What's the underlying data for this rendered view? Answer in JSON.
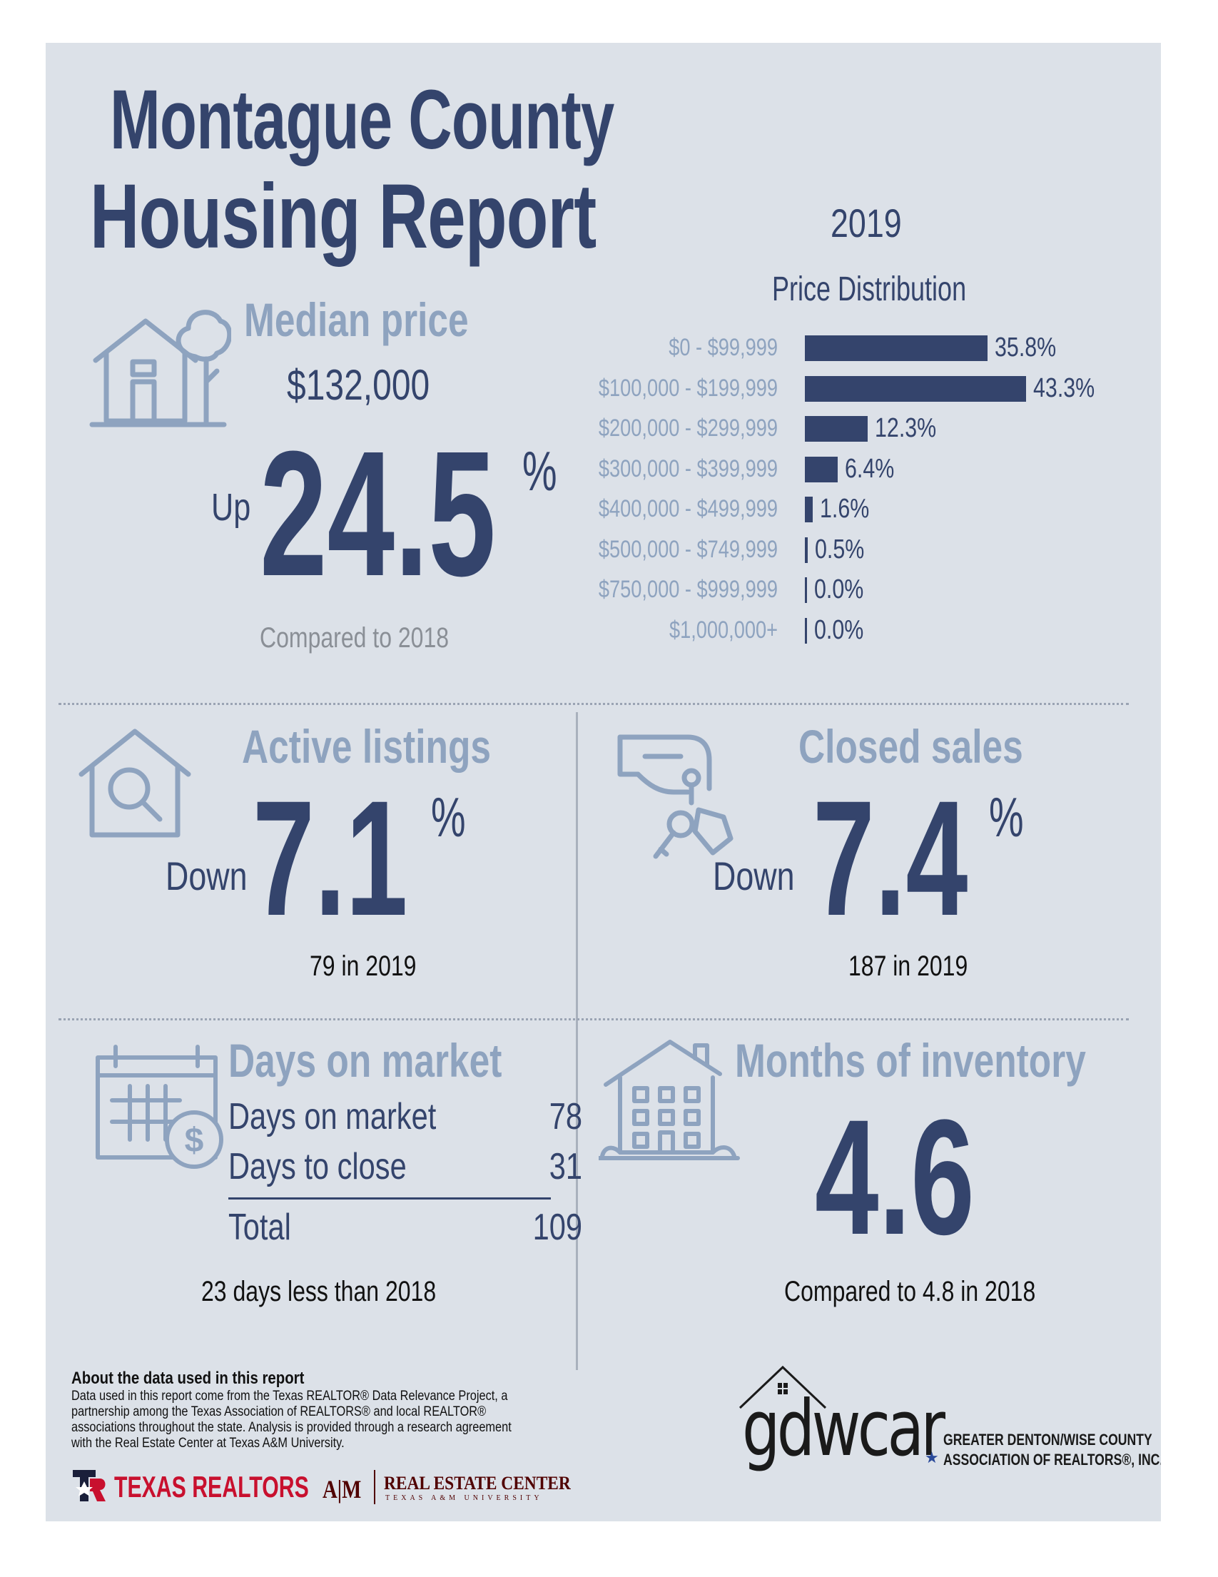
{
  "title": {
    "line1": "Montague County",
    "line2": "Housing Report"
  },
  "year": "2019",
  "price_distribution": {
    "title": "Price Distribution",
    "rows": [
      {
        "label": "$0 - $99,999",
        "value": 35.8,
        "text": "35.8%"
      },
      {
        "label": "$100,000 - $199,999",
        "value": 43.3,
        "text": "43.3%"
      },
      {
        "label": "$200,000 - $299,999",
        "value": 12.3,
        "text": "12.3%"
      },
      {
        "label": "$300,000 - $399,999",
        "value": 6.4,
        "text": "6.4%"
      },
      {
        "label": "$400,000 - $499,999",
        "value": 1.6,
        "text": "1.6%"
      },
      {
        "label": "$500,000 - $749,999",
        "value": 0.5,
        "text": "0.5%"
      },
      {
        "label": "$750,000 - $999,999",
        "value": 0.0,
        "text": "0.0%"
      },
      {
        "label": "$1,000,000+",
        "value": 0.0,
        "text": "0.0%"
      }
    ]
  },
  "median_price": {
    "heading": "Median price",
    "value": "$132,000",
    "direction": "Up",
    "change": "24.5",
    "percent": "%",
    "comparison": "Compared to 2018",
    "icon": "house-with-tree-icon"
  },
  "active_listings": {
    "heading": "Active listings",
    "direction": "Down",
    "change": "7.1",
    "percent": "%",
    "footnote": "79 in 2019",
    "icon": "house-magnifier-icon"
  },
  "closed_sales": {
    "heading": "Closed sales",
    "direction": "Down",
    "change": "7.4",
    "percent": "%",
    "footnote": "187 in 2019",
    "icon": "hand-keys-icon"
  },
  "days_on_market": {
    "heading": "Days on market",
    "rows": [
      {
        "label": "Days on market",
        "value": "78"
      },
      {
        "label": "Days to close",
        "value": "31"
      }
    ],
    "total_label": "Total",
    "total_value": "109",
    "footnote": "23 days less than 2018",
    "icon": "calendar-dollar-icon"
  },
  "months_inventory": {
    "heading": "Months of inventory",
    "value": "4.6",
    "footnote": "Compared to 4.8 in 2018",
    "icon": "apartment-house-icon"
  },
  "about": {
    "title": "About the data used in this report",
    "text": "Data used in this report come from the Texas REALTOR® Data Relevance Project, a partnership among the Texas Association of REALTORS® and local REALTOR® associations throughout the state. Analysis is provided through a research agreement with the Real Estate Center at Texas A&M University."
  },
  "logos": {
    "texas_realtors": "TEXAS REALTORS",
    "rec_main": "REAL ESTATE CENTER",
    "rec_sub": "TEXAS A&M UNIVERSITY",
    "tam": "A|M",
    "gdwcar": "gdwcar",
    "gdwcar_line1": "GREATER DENTON/WISE COUNTY",
    "gdwcar_line2": "ASSOCIATION OF REALTORS®, INC."
  },
  "colors": {
    "navy": "#34446c",
    "slate": "#8ea3bf",
    "panel": "#dce1e8",
    "brand_red": "#c8102e",
    "aggie_maroon": "#500000"
  }
}
